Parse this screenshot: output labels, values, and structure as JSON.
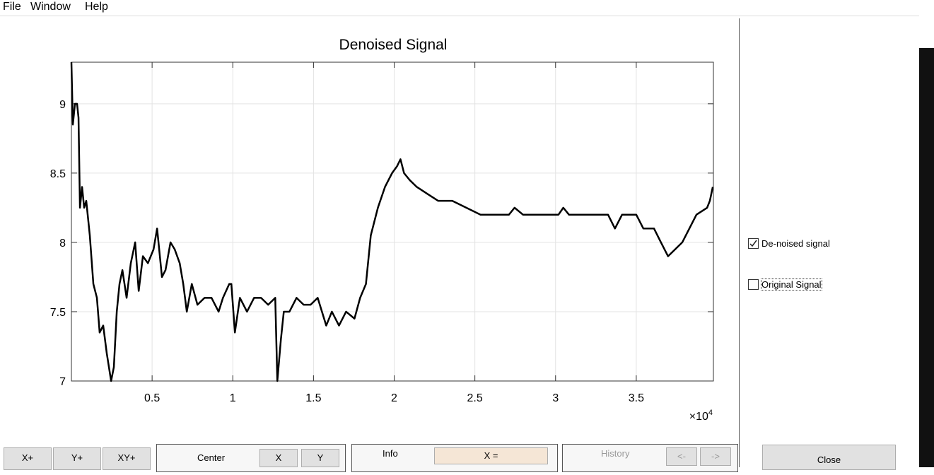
{
  "menu": [
    "File",
    "Window",
    "Help"
  ],
  "chart_data": {
    "type": "line",
    "title": "Denoised Signal",
    "color": "#000000",
    "grid": true,
    "axis_multiplier": {
      "base": "×10",
      "exponent": "4"
    },
    "x": [
      0,
      90,
      220,
      350,
      440,
      530,
      660,
      790,
      920,
      1140,
      1360,
      1580,
      1750,
      1970,
      2190,
      2460,
      2630,
      2810,
      2980,
      3160,
      3420,
      3680,
      3950,
      4170,
      4430,
      4740,
      5090,
      5310,
      5610,
      5830,
      6140,
      6400,
      6710,
      6930,
      7150,
      7460,
      7810,
      8250,
      8680,
      9120,
      9390,
      9780,
      9910,
      10130,
      10440,
      10880,
      11320,
      11750,
      12190,
      12630,
      12760,
      12980,
      13160,
      13510,
      13950,
      14390,
      14820,
      15260,
      15790,
      16140,
      16580,
      17020,
      17540,
      17890,
      18250,
      18550,
      18990,
      19430,
      19870,
      20180,
      20390,
      20610,
      20960,
      21400,
      22060,
      22720,
      23600,
      24470,
      25350,
      26230,
      27110,
      27460,
      27980,
      28860,
      30180,
      30480,
      30830,
      31930,
      33250,
      33680,
      34120,
      35000,
      35440,
      36100,
      36530,
      36970,
      37410,
      37850,
      38290,
      38730,
      39390,
      39560,
      39740
    ],
    "values": [
      9.3,
      8.85,
      9.0,
      9.0,
      8.9,
      8.25,
      8.4,
      8.25,
      8.3,
      8.05,
      7.7,
      7.6,
      7.35,
      7.4,
      7.2,
      7.0,
      7.1,
      7.5,
      7.7,
      7.8,
      7.6,
      7.85,
      8.0,
      7.65,
      7.9,
      7.85,
      7.95,
      8.1,
      7.75,
      7.8,
      8.0,
      7.95,
      7.85,
      7.7,
      7.5,
      7.7,
      7.55,
      7.6,
      7.6,
      7.5,
      7.6,
      7.7,
      7.7,
      7.35,
      7.6,
      7.5,
      7.6,
      7.6,
      7.55,
      7.6,
      7.0,
      7.3,
      7.5,
      7.5,
      7.6,
      7.55,
      7.55,
      7.6,
      7.4,
      7.5,
      7.4,
      7.5,
      7.45,
      7.6,
      7.7,
      8.05,
      8.25,
      8.4,
      8.5,
      8.55,
      8.6,
      8.5,
      8.45,
      8.4,
      8.35,
      8.3,
      8.3,
      8.25,
      8.2,
      8.2,
      8.2,
      8.25,
      8.2,
      8.2,
      8.2,
      8.25,
      8.2,
      8.2,
      8.2,
      8.1,
      8.2,
      8.2,
      8.1,
      8.1,
      8.0,
      7.9,
      7.95,
      8.0,
      8.1,
      8.2,
      8.25,
      8.3,
      8.4
    ],
    "xlim": [
      0,
      39780
    ],
    "ylim": [
      7,
      9.3
    ],
    "xticks": [
      {
        "value": 5000,
        "label": "0.5"
      },
      {
        "value": 10000,
        "label": "1"
      },
      {
        "value": 15000,
        "label": "1.5"
      },
      {
        "value": 20000,
        "label": "2"
      },
      {
        "value": 25000,
        "label": "2.5"
      },
      {
        "value": 30000,
        "label": "3"
      },
      {
        "value": 35000,
        "label": "3.5"
      }
    ],
    "yticks": [
      7,
      7.5,
      8,
      8.5,
      9
    ]
  },
  "panel": {
    "checkboxes": [
      {
        "label": "De-noised signal",
        "checked": true
      },
      {
        "label": "Original Signal",
        "checked": false
      }
    ]
  },
  "toolbar": {
    "zoom_buttons": [
      "X+",
      "Y+",
      "XY+"
    ],
    "center": {
      "label": "Center",
      "buttons": [
        "X",
        "Y"
      ]
    },
    "info": {
      "label": "Info",
      "field": "X ="
    },
    "history": {
      "label": "History",
      "buttons": [
        "<-",
        "->"
      ]
    },
    "close": "Close"
  }
}
